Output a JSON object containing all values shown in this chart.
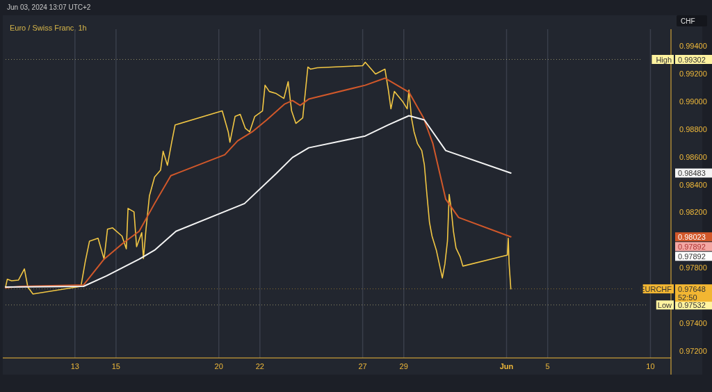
{
  "chart_data": {
    "type": "line",
    "title": "Euro / Swiss Franc, 1h",
    "subtitle": "Jun 03, 2024 13:07 UTC+2",
    "ylabel": "CHF",
    "xlim": [
      "2024-05-09T15:00",
      "2024-06-11T00:00"
    ],
    "xticks": [
      {
        "value": "2024-05-13",
        "label": "13"
      },
      {
        "value": "2024-05-15",
        "label": "15"
      },
      {
        "value": "2024-05-20",
        "label": "20"
      },
      {
        "value": "2024-05-22",
        "label": "22"
      },
      {
        "value": "2024-05-27",
        "label": "27"
      },
      {
        "value": "2024-05-29",
        "label": "29"
      },
      {
        "value": "2024-06-03",
        "label": "Jun"
      },
      {
        "value": "2024-06-05",
        "label": "5"
      },
      {
        "value": "2024-06-10",
        "label": "10"
      }
    ],
    "ylim": [
      0.9715,
      0.9952
    ],
    "yticks": [
      {
        "value": 0.972,
        "label": "0.97200"
      },
      {
        "value": 0.974,
        "label": "0.97400"
      },
      {
        "value": 0.978,
        "label": "0.97800"
      },
      {
        "value": 0.982,
        "label": "0.98200"
      },
      {
        "value": 0.984,
        "label": "0.98400"
      },
      {
        "value": 0.986,
        "label": "0.98600"
      },
      {
        "value": 0.988,
        "label": "0.98800"
      },
      {
        "value": 0.99,
        "label": "0.99000"
      },
      {
        "value": 0.992,
        "label": "0.99200"
      },
      {
        "value": 0.994,
        "label": "0.99400"
      }
    ],
    "grid": "x",
    "marker": "none",
    "line_style": "solid",
    "series": [
      {
        "color": "#f2c744",
        "x": [
          "2024-05-09T15:00",
          "2024-05-09T17:00",
          "2024-05-09T22:00",
          "2024-05-10T06:00",
          "2024-05-10T13:00",
          "2024-05-10T17:00",
          "2024-05-10T23:00",
          "2024-05-13T07:00",
          "2024-05-13T12:00",
          "2024-05-13T17:00",
          "2024-05-14T03:00",
          "2024-05-14T10:00",
          "2024-05-14T14:00",
          "2024-05-14T20:00",
          "2024-05-15T07:00",
          "2024-05-15T12:00",
          "2024-05-15T14:00",
          "2024-05-15T21:00",
          "2024-05-16T00:00",
          "2024-05-16T06:00",
          "2024-05-16T08:00",
          "2024-05-16T11:00",
          "2024-05-16T15:00",
          "2024-05-16T21:00",
          "2024-05-17T04:00",
          "2024-05-17T07:00",
          "2024-05-17T12:00",
          "2024-05-17T17:00",
          "2024-05-17T21:00",
          "2024-05-20T04:00",
          "2024-05-20T11:00",
          "2024-05-20T13:00",
          "2024-05-20T19:00",
          "2024-05-21T01:00",
          "2024-05-21T07:00",
          "2024-05-21T12:00",
          "2024-05-21T18:00",
          "2024-05-22T03:00",
          "2024-05-22T06:00",
          "2024-05-22T11:00",
          "2024-05-22T19:00",
          "2024-05-23T04:00",
          "2024-05-23T09:00",
          "2024-05-23T13:00",
          "2024-05-23T18:00",
          "2024-05-24T02:00",
          "2024-05-24T08:00",
          "2024-05-24T11:00",
          "2024-05-24T19:00",
          "2024-05-27T00:00",
          "2024-05-27T03:00",
          "2024-05-27T15:00",
          "2024-05-28T02:00",
          "2024-05-28T06:00",
          "2024-05-28T09:00",
          "2024-05-28T13:00",
          "2024-05-28T23:00",
          "2024-05-29T04:00",
          "2024-05-29T06:00",
          "2024-05-29T09:00",
          "2024-05-29T12:00",
          "2024-05-29T16:00",
          "2024-05-29T21:00",
          "2024-05-30T00:00",
          "2024-05-30T03:00",
          "2024-05-30T06:00",
          "2024-05-30T09:00",
          "2024-05-30T14:00",
          "2024-05-30T17:00",
          "2024-05-30T21:00",
          "2024-05-31T00:00",
          "2024-05-31T03:00",
          "2024-05-31T05:00",
          "2024-05-31T07:00",
          "2024-05-31T10:00",
          "2024-05-31T13:00",
          "2024-05-31T18:00",
          "2024-05-31T21:00",
          "2024-06-03T01:00",
          "2024-06-03T02:00",
          "2024-06-03T03:00",
          "2024-06-03T05:00"
        ],
        "values": [
          0.97661,
          0.97717,
          0.97706,
          0.97711,
          0.97792,
          0.97661,
          0.97611,
          0.97666,
          0.97842,
          0.97992,
          0.98013,
          0.97862,
          0.98078,
          0.98088,
          0.98028,
          0.97937,
          0.98228,
          0.98203,
          0.97952,
          0.98053,
          0.97867,
          0.98078,
          0.98319,
          0.98454,
          0.98504,
          0.9864,
          0.98539,
          0.98705,
          0.9883,
          0.98931,
          0.9878,
          0.98705,
          0.98891,
          0.98906,
          0.98805,
          0.9878,
          0.98891,
          0.98931,
          0.99116,
          0.99071,
          0.99056,
          0.99021,
          0.99142,
          0.98931,
          0.98841,
          0.98881,
          0.99247,
          0.99232,
          0.99242,
          0.99257,
          0.99282,
          0.99197,
          0.99232,
          0.99081,
          0.98946,
          0.99071,
          0.98996,
          0.98946,
          0.99081,
          0.98881,
          0.9878,
          0.98695,
          0.98645,
          0.98544,
          0.98329,
          0.98128,
          0.98028,
          0.97927,
          0.97842,
          0.97727,
          0.97827,
          0.97992,
          0.98329,
          0.98243,
          0.98063,
          0.97942,
          0.97877,
          0.97812,
          0.97892,
          0.98013,
          0.97827,
          0.97648
        ]
      },
      {
        "color": "#d2582a",
        "x": [
          "2024-05-09T15:00",
          "2024-05-10T09:00",
          "2024-05-13T10:00",
          "2024-05-14T10:00",
          "2024-05-15T08:00",
          "2024-05-16T03:00",
          "2024-05-16T21:00",
          "2024-05-17T16:00",
          "2024-05-20T07:00",
          "2024-05-20T22:00",
          "2024-05-21T15:00",
          "2024-05-22T08:00",
          "2024-05-23T05:00",
          "2024-05-23T14:00",
          "2024-05-23T23:00",
          "2024-05-24T09:00",
          "2024-05-27T03:00",
          "2024-05-28T02:00",
          "2024-05-29T06:00",
          "2024-05-29T23:00",
          "2024-05-30T10:00",
          "2024-05-31T01:00",
          "2024-05-31T16:00",
          "2024-06-03T05:00"
        ],
        "values": [
          0.97656,
          0.97666,
          0.97676,
          0.97862,
          0.97977,
          0.98063,
          0.98263,
          0.98464,
          0.98615,
          0.98715,
          0.9878,
          0.98866,
          0.98981,
          0.99006,
          0.98971,
          0.99016,
          0.99116,
          0.99167,
          0.99066,
          0.98881,
          0.98695,
          0.98294,
          0.98163,
          0.98023
        ]
      },
      {
        "color": "#f4f4f4",
        "x": [
          "2024-05-09T15:00",
          "2024-05-13T10:00",
          "2024-05-14T13:00",
          "2024-05-16T03:00",
          "2024-05-16T21:00",
          "2024-05-17T22:00",
          "2024-05-21T06:00",
          "2024-05-22T19:00",
          "2024-05-23T14:00",
          "2024-05-24T09:00",
          "2024-05-27T03:00",
          "2024-05-28T06:00",
          "2024-05-29T06:00",
          "2024-05-30T00:00",
          "2024-05-31T01:00",
          "2024-06-03T05:00"
        ],
        "values": [
          0.97661,
          0.97666,
          0.97742,
          0.97862,
          0.97927,
          0.98063,
          0.98263,
          0.98479,
          0.98595,
          0.98665,
          0.9875,
          0.9883,
          0.98896,
          0.98866,
          0.98645,
          0.98483
        ]
      }
    ],
    "ref_lines": [
      {
        "axis": "y",
        "value": 0.99302,
        "label": "High",
        "color": "#fff3a0",
        "line_style": "dotted"
      },
      {
        "axis": "y",
        "value": 0.97648,
        "label": "EURCHF",
        "color": "#f2b632",
        "line_style": "dotted"
      },
      {
        "axis": "y",
        "value": 0.97532,
        "label": "Low",
        "color": "#fff3a0",
        "line_style": "dotted"
      }
    ],
    "annotations": [
      "0.99302",
      "0.97648",
      "0.97532",
      "0.98483",
      "0.98023",
      "0.97892",
      "0.97892",
      "52:50"
    ]
  }
}
